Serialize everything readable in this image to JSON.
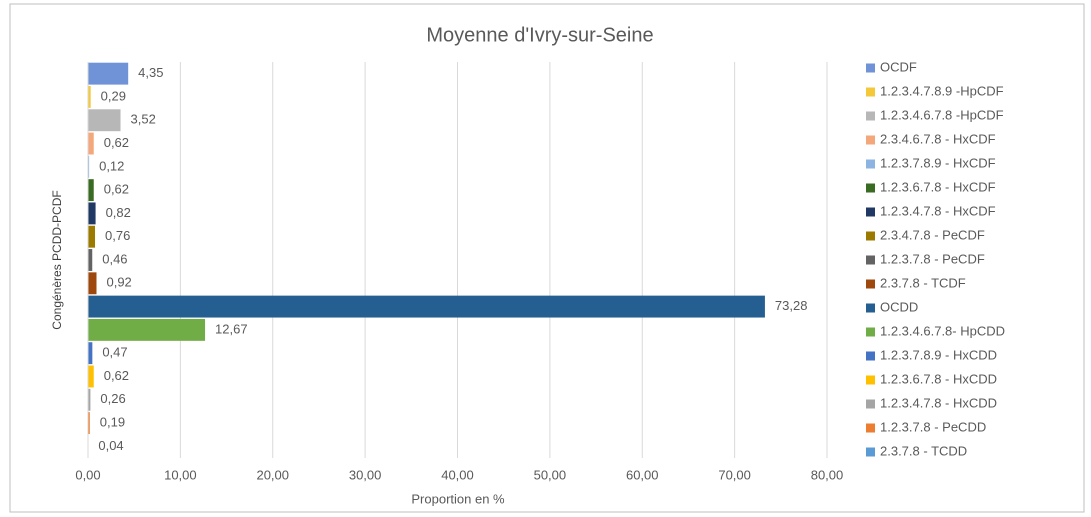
{
  "chart_data": {
    "type": "hbar",
    "title": "Moyenne d'Ivry-sur-Seine",
    "x_label": "Proportion en %",
    "y_label": "Congénères PCDD-PCDF",
    "xlim": [
      0,
      80
    ],
    "xticks": [
      {
        "value": 0,
        "label": "0,00"
      },
      {
        "value": 10,
        "label": "10,00"
      },
      {
        "value": 20,
        "label": "20,00"
      },
      {
        "value": 30,
        "label": "30,00"
      },
      {
        "value": 40,
        "label": "40,00"
      },
      {
        "value": 50,
        "label": "50,00"
      },
      {
        "value": 60,
        "label": "60,00"
      },
      {
        "value": 70,
        "label": "70,00"
      },
      {
        "value": 80,
        "label": "80,00"
      }
    ],
    "grid": true,
    "legend": "right",
    "series": [
      {
        "name": "OCDF",
        "color": "#6f93d6",
        "values": [
          4.35
        ],
        "value_labels": [
          "4,35"
        ]
      },
      {
        "name": "1.2.3.4.7.8.9 -HpCDF",
        "color": "#f5c83a",
        "values": [
          0.29
        ],
        "value_labels": [
          "0,29"
        ]
      },
      {
        "name": "1.2.3.4.6.7.8 -HpCDF",
        "color": "#b7b7b7",
        "values": [
          3.52
        ],
        "value_labels": [
          "3,52"
        ]
      },
      {
        "name": "2.3.4.6.7.8 - HxCDF",
        "color": "#f4a77a",
        "values": [
          0.62
        ],
        "value_labels": [
          "0,62"
        ]
      },
      {
        "name": "1.2.3.7.8.9 - HxCDF",
        "color": "#8db3e2",
        "values": [
          0.12
        ],
        "value_labels": [
          "0,12"
        ]
      },
      {
        "name": "1.2.3.6.7.8 - HxCDF",
        "color": "#3a6b22",
        "values": [
          0.62
        ],
        "value_labels": [
          "0,62"
        ]
      },
      {
        "name": "1.2.3.4.7.8 - HxCDF",
        "color": "#1f3864",
        "values": [
          0.82
        ],
        "value_labels": [
          "0,82"
        ]
      },
      {
        "name": "2.3.4.7.8 - PeCDF",
        "color": "#9c7a00",
        "values": [
          0.76
        ],
        "value_labels": [
          "0,76"
        ]
      },
      {
        "name": "1.2.3.7.8 - PeCDF",
        "color": "#636363",
        "values": [
          0.46
        ],
        "value_labels": [
          "0,46"
        ]
      },
      {
        "name": "2.3.7.8 - TCDF",
        "color": "#9e480e",
        "values": [
          0.92
        ],
        "value_labels": [
          "0,92"
        ]
      },
      {
        "name": "OCDD",
        "color": "#255e91",
        "values": [
          73.28
        ],
        "value_labels": [
          "73,28"
        ]
      },
      {
        "name": "1.2.3.4.6.7.8- HpCDD",
        "color": "#70ad47",
        "values": [
          12.67
        ],
        "value_labels": [
          "12,67"
        ]
      },
      {
        "name": "1.2.3.7.8.9 - HxCDD",
        "color": "#4472c4",
        "values": [
          0.47
        ],
        "value_labels": [
          "0,47"
        ]
      },
      {
        "name": "1.2.3.6.7.8 - HxCDD",
        "color": "#ffc000",
        "values": [
          0.62
        ],
        "value_labels": [
          "0,62"
        ]
      },
      {
        "name": "1.2.3.4.7.8 - HxCDD",
        "color": "#a5a5a5",
        "values": [
          0.26
        ],
        "value_labels": [
          "0,26"
        ]
      },
      {
        "name": "1.2.3.7.8 - PeCDD",
        "color": "#ed7d31",
        "values": [
          0.19
        ],
        "value_labels": [
          "0,19"
        ]
      },
      {
        "name": "2.3.7.8 - TCDD",
        "color": "#5b9bd5",
        "values": [
          0.04
        ],
        "value_labels": [
          "0,04"
        ]
      }
    ]
  }
}
